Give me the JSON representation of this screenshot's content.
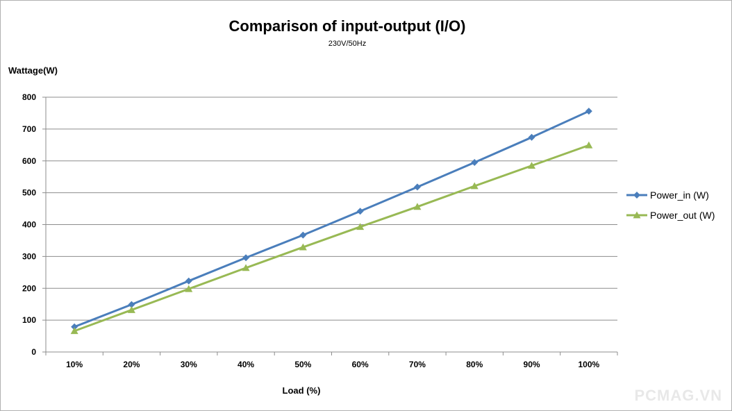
{
  "chart_data": {
    "type": "line",
    "title": "Comparison of input-output (I/O)",
    "subtitle": "230V/50Hz",
    "ylabel": "Wattage(W)",
    "xlabel": "Load (%)",
    "categories": [
      "10%",
      "20%",
      "30%",
      "40%",
      "50%",
      "60%",
      "70%",
      "80%",
      "90%",
      "100%"
    ],
    "ylim": [
      0,
      800
    ],
    "yticks": [
      0,
      100,
      200,
      300,
      400,
      500,
      600,
      700,
      800
    ],
    "grid": true,
    "legend_position": "right",
    "series": [
      {
        "name": "Power_in (W)",
        "color": "#4a7ebb",
        "marker": "diamond",
        "values": [
          79,
          149,
          223,
          296,
          367,
          442,
          518,
          595,
          674,
          756
        ]
      },
      {
        "name": "Power_out (W)",
        "color": "#98b954",
        "marker": "triangle",
        "values": [
          66,
          132,
          198,
          264,
          329,
          393,
          456,
          521,
          585,
          649
        ]
      }
    ]
  },
  "watermark": "PCMAG.VN"
}
